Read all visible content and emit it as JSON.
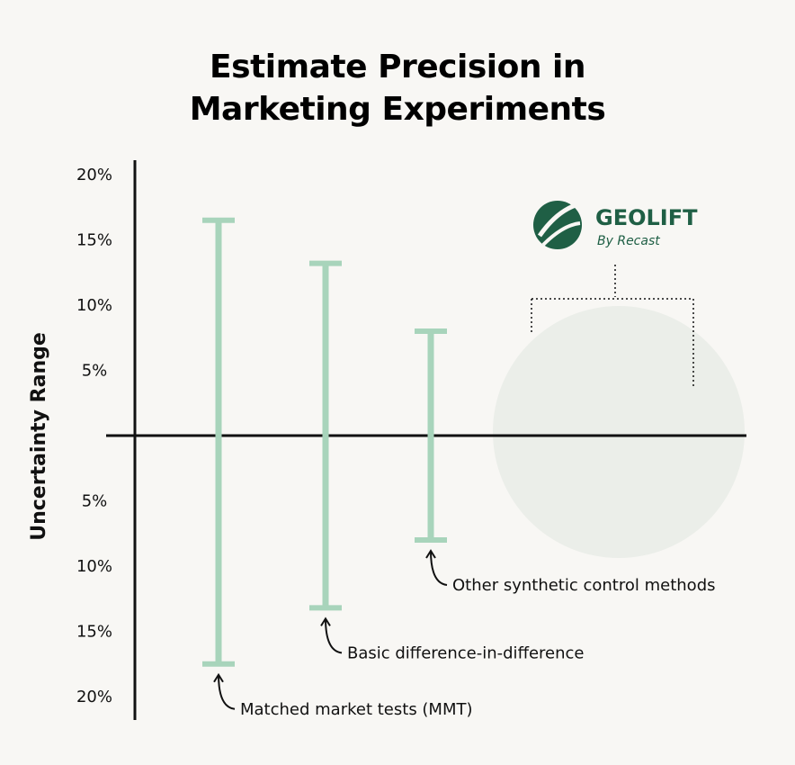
{
  "chart_data": {
    "type": "errorbar",
    "title_lines": [
      "Estimate Precision in",
      "Marketing Experiments"
    ],
    "ylabel": "Uncertainty Range",
    "y_ticks_upper": [
      "20%",
      "15%",
      "10%",
      "5%"
    ],
    "y_ticks_lower": [
      "5%",
      "10%",
      "15%",
      "20%"
    ],
    "ylim": [
      -21,
      20
    ],
    "series": [
      {
        "name": "Matched market tests (MMT)",
        "upper": 16.5,
        "lower": -17.5
      },
      {
        "name": "Basic difference-in-difference",
        "upper": 13.2,
        "lower": -13.2
      },
      {
        "name": "Other synthetic control methods",
        "upper": 8.0,
        "lower": -8.0
      }
    ],
    "bar_color": "#a8d4bb",
    "highlight": {
      "brand": "GEOLIFT",
      "sub": "By Recast",
      "color": "#1f5f45"
    }
  }
}
